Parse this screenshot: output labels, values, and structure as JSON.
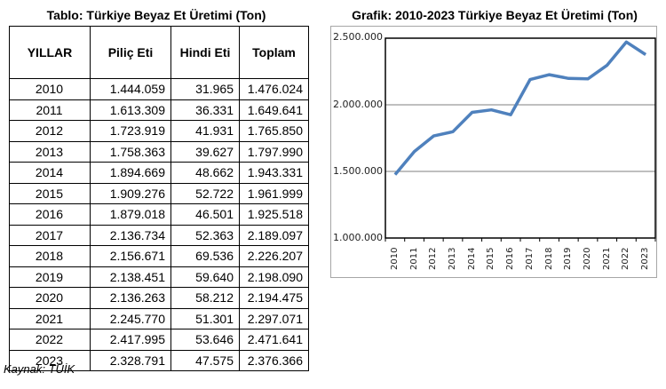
{
  "table": {
    "title": "Tablo: Türkiye Beyaz Et Üretimi (Ton)",
    "headers": [
      "YILLAR",
      "Piliç Eti",
      "Hindi Eti",
      "Toplam"
    ],
    "rows": [
      [
        "2010",
        "1.444.059",
        "31.965",
        "1.476.024"
      ],
      [
        "2011",
        "1.613.309",
        "36.331",
        "1.649.641"
      ],
      [
        "2012",
        "1.723.919",
        "41.931",
        "1.765.850"
      ],
      [
        "2013",
        "1.758.363",
        "39.627",
        "1.797.990"
      ],
      [
        "2014",
        "1.894.669",
        "48.662",
        "1.943.331"
      ],
      [
        "2015",
        "1.909.276",
        "52.722",
        "1.961.999"
      ],
      [
        "2016",
        "1.879.018",
        "46.501",
        "1.925.518"
      ],
      [
        "2017",
        "2.136.734",
        "52.363",
        "2.189.097"
      ],
      [
        "2018",
        "2.156.671",
        "69.536",
        "2.226.207"
      ],
      [
        "2019",
        "2.138.451",
        "59.640",
        "2.198.090"
      ],
      [
        "2020",
        "2.136.263",
        "58.212",
        "2.194.475"
      ],
      [
        "2021",
        "2.245.770",
        "51.301",
        "2.297.071"
      ],
      [
        "2022",
        "2.417.995",
        "53.646",
        "2.471.641"
      ],
      [
        "2023",
        "2.328.791",
        "47.575",
        "2.376.366"
      ]
    ],
    "source": "Kaynak: TÜİK"
  },
  "chart": {
    "title": "Grafik: 2010-2023 Türkiye Beyaz Et Üretimi (Ton)",
    "y_tick_labels": [
      "2.500.000",
      "2.000.000",
      "1.500.000",
      "1.000.000"
    ],
    "line_color": "#4f81bd"
  },
  "chart_data": {
    "type": "line",
    "title": "Grafik: 2010-2023 Türkiye Beyaz Et Üretimi (Ton)",
    "xlabel": "",
    "ylabel": "",
    "categories": [
      "2010",
      "2011",
      "2012",
      "2013",
      "2014",
      "2015",
      "2016",
      "2017",
      "2018",
      "2019",
      "2020",
      "2021",
      "2022",
      "2023"
    ],
    "series": [
      {
        "name": "Toplam",
        "values": [
          1476024,
          1649641,
          1765850,
          1797990,
          1943331,
          1961999,
          1925518,
          2189097,
          2226207,
          2198090,
          2194475,
          2297071,
          2471641,
          2376366
        ]
      }
    ],
    "ylim": [
      1000000,
      2500000
    ],
    "yticks": [
      1000000,
      1500000,
      2000000,
      2500000
    ],
    "grid": "horizontal",
    "legend": "none"
  }
}
